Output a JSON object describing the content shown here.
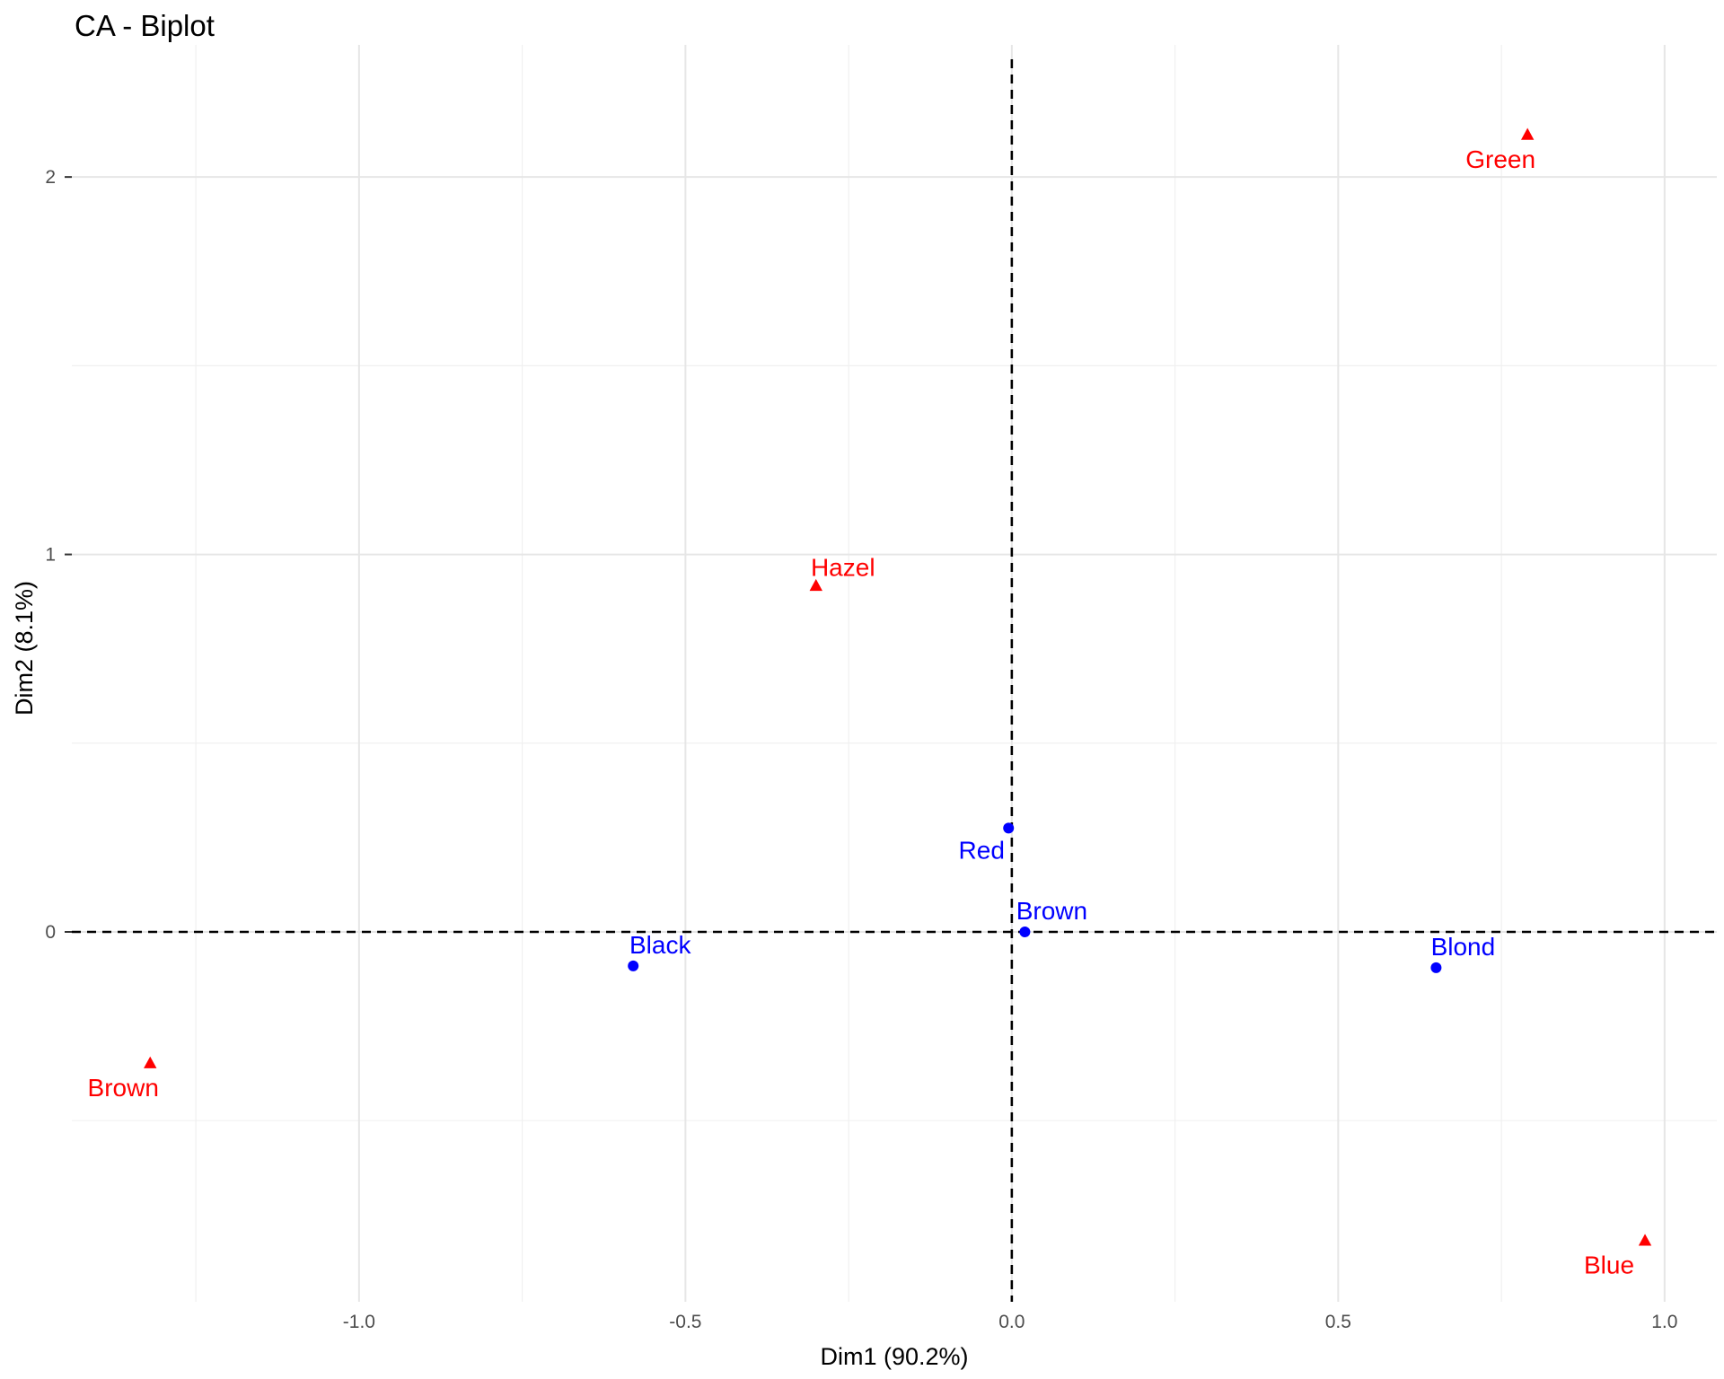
{
  "chart_data": {
    "type": "scatter",
    "title": "CA - Biplot",
    "xlabel": "Dim1 (90.2%)",
    "ylabel": "Dim2 (8.1%)",
    "xlim": [
      -1.44,
      1.08
    ],
    "ylim": [
      -0.98,
      2.35
    ],
    "x_ticks": [
      -1.0,
      -0.5,
      0.0,
      0.5,
      1.0
    ],
    "x_tick_labels": [
      "-1.0",
      "-0.5",
      "0.0",
      "0.5",
      "1.0"
    ],
    "y_ticks": [
      0,
      1,
      2
    ],
    "y_tick_labels": [
      "0",
      "1",
      "2"
    ],
    "grid": true,
    "reference_lines": {
      "x": 0,
      "y": 0,
      "style": "dashed"
    },
    "series": [
      {
        "shape": "circle",
        "color": "#0000ff",
        "points": [
          {
            "label": "Black",
            "x": -0.58,
            "y": -0.09
          },
          {
            "label": "Brown",
            "x": 0.02,
            "y": 0.0
          },
          {
            "label": "Red",
            "x": -0.005,
            "y": 0.275
          },
          {
            "label": "Blond",
            "x": 0.65,
            "y": -0.095
          }
        ]
      },
      {
        "shape": "triangle",
        "color": "#ff0000",
        "points": [
          {
            "label": "Brown",
            "x": -1.32,
            "y": -0.35
          },
          {
            "label": "Hazel",
            "x": -0.3,
            "y": 0.915
          },
          {
            "label": "Green",
            "x": 0.79,
            "y": 2.11
          },
          {
            "label": "Blue",
            "x": 0.97,
            "y": -0.82
          }
        ]
      }
    ]
  }
}
